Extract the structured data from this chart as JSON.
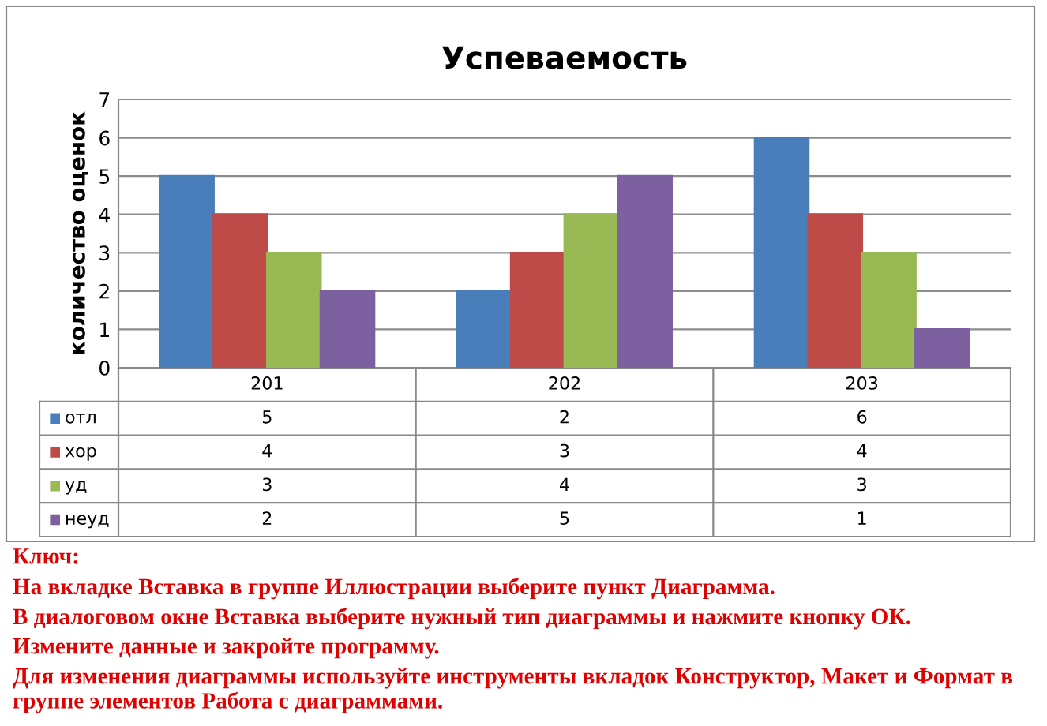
{
  "chart_data": {
    "type": "bar",
    "title": "Успеваемость",
    "ylabel": "количество оценок",
    "categories": [
      "201",
      "202",
      "203"
    ],
    "series": [
      {
        "name": "отл",
        "color": "#4a7ebb",
        "values": [
          5,
          2,
          6
        ]
      },
      {
        "name": "хор",
        "color": "#be4b48",
        "values": [
          4,
          3,
          4
        ]
      },
      {
        "name": "уд",
        "color": "#98b954",
        "values": [
          3,
          4,
          3
        ]
      },
      {
        "name": "неуд",
        "color": "#7d60a0",
        "values": [
          2,
          5,
          1
        ]
      }
    ],
    "ylim": [
      0,
      7
    ],
    "yticks": [
      0,
      1,
      2,
      3,
      4,
      5,
      6,
      7
    ],
    "grid": "y",
    "legend": "bottom",
    "data_labels": true,
    "annotations": [
      "Ключ:",
      "На вкладке Вставка в группе Иллюстрации выберите пункт Диаграмма.",
      "В диалоговом окне Вставка выберите нужный тип диаграммы и нажмите кнопку ОК.",
      "Измените данные и закройте программу.",
      "Для изменения диаграммы используйте инструменты вкладок Конструктор, Макет и Формат в группе элементов Работа с диаграммами."
    ]
  }
}
